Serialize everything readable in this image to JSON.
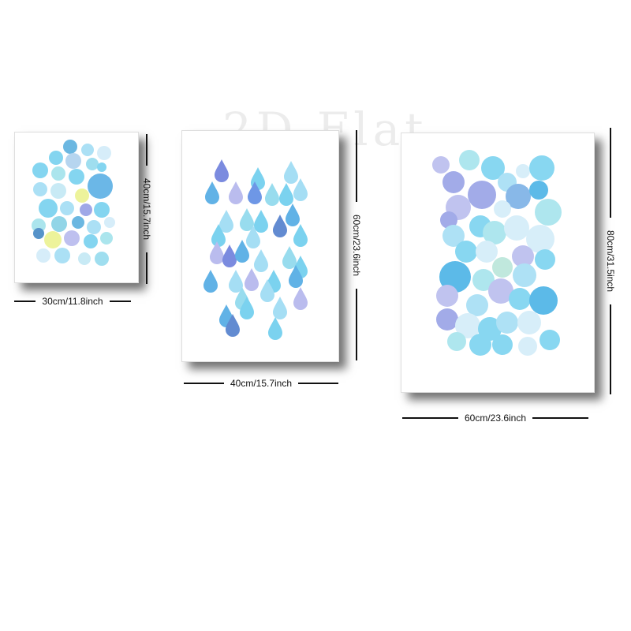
{
  "watermark": "2D Flat",
  "colors": {
    "aqua": "#5bc8ec",
    "sky": "#8fd6f2",
    "blue": "#3a9fe0",
    "lavender": "#a9acea",
    "periwinkle": "#7f8ce0",
    "yellow": "#e8f07a"
  },
  "posters": [
    {
      "name": "bubbles-small",
      "width_label": "30cm/11.8inch",
      "height_label": "40cm/15.7inch"
    },
    {
      "name": "raindrops",
      "width_label": "40cm/15.7inch",
      "height_label": "60cm/23.6inch"
    },
    {
      "name": "bubbles-large",
      "width_label": "60cm/23.6inch",
      "height_label": "80cm/31.5inch"
    }
  ]
}
